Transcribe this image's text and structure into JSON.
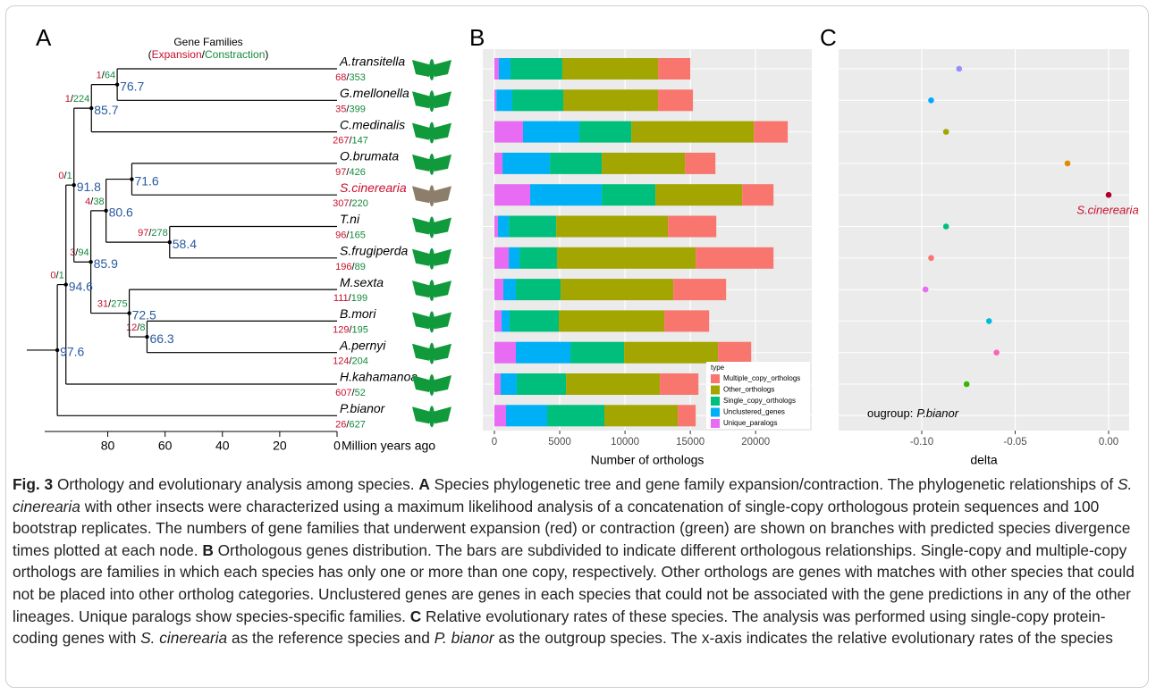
{
  "panel_labels": [
    "A",
    "B",
    "C"
  ],
  "tree": {
    "header": {
      "title": "Gene Families",
      "open": "(",
      "expansion": "Expansion",
      "slash": "/",
      "contraction": "Constraction",
      "close": ")"
    },
    "axis": {
      "lim": [
        102,
        0
      ],
      "ticks": [
        80,
        60,
        40,
        20,
        0
      ],
      "label": "Million years ago"
    },
    "root": {
      "age": 97.6,
      "children": [
        {
          "age": 94.6,
          "expansion": 0,
          "contraction": 1,
          "children": [
            {
              "age": 91.8,
              "expansion": 0,
              "contraction": 1,
              "children": [
                {
                  "age": 85.7,
                  "expansion": 1,
                  "contraction": 224,
                  "children": [
                    {
                      "age": 76.7,
                      "expansion": 1,
                      "contraction": 64,
                      "children": [
                        {
                          "name": "A.transitella",
                          "expansion": 68,
                          "contraction": 353
                        },
                        {
                          "name": "G.mellonella",
                          "expansion": 35,
                          "contraction": 399
                        }
                      ]
                    },
                    {
                      "name": "C.medinalis",
                      "expansion": 267,
                      "contraction": 147
                    }
                  ]
                },
                {
                  "age": 85.9,
                  "expansion": 3,
                  "contraction": 94,
                  "children": [
                    {
                      "age": 80.6,
                      "expansion": 4,
                      "contraction": 38,
                      "children": [
                        {
                          "age": 71.6,
                          "children": [
                            {
                              "name": "O.brumata",
                              "expansion": 97,
                              "contraction": 426
                            },
                            {
                              "name": "S.cinerearia",
                              "expansion": 307,
                              "contraction": 220,
                              "color": "#c8102e"
                            }
                          ]
                        },
                        {
                          "age": 58.4,
                          "expansion": 97,
                          "contraction": 278,
                          "children": [
                            {
                              "name": "T.ni",
                              "expansion": 96,
                              "contraction": 165
                            },
                            {
                              "name": "S.frugiperda",
                              "expansion": 196,
                              "contraction": 89
                            }
                          ]
                        }
                      ]
                    },
                    {
                      "age": 72.5,
                      "expansion": 31,
                      "contraction": 275,
                      "children": [
                        {
                          "name": "M.sexta",
                          "expansion": 111,
                          "contraction": 199
                        },
                        {
                          "age": 66.3,
                          "expansion": 12,
                          "contraction": 8,
                          "children": [
                            {
                              "name": "B.mori",
                              "expansion": 129,
                              "contraction": 195
                            },
                            {
                              "name": "A.pernyi",
                              "expansion": 124,
                              "contraction": 204
                            }
                          ]
                        }
                      ]
                    }
                  ]
                }
              ]
            },
            {
              "name": "H.kahamanoa",
              "expansion": 607,
              "contraction": 52
            }
          ]
        },
        {
          "name": "P.bianor",
          "expansion": 26,
          "contraction": 627
        }
      ]
    }
  },
  "chart_data": [
    {
      "type": "bar",
      "orientation": "horizontal",
      "stacked": true,
      "xlabel": "Number of orthologs",
      "xlim": [
        -890,
        24300
      ],
      "xticks": [
        0,
        5000,
        10000,
        15000,
        20000
      ],
      "grid": true,
      "legend_title": "type",
      "legend": "bottom-right",
      "series": [
        {
          "name": "Multiple_copy_orthologs",
          "color": "#f8766d",
          "values": [
            2470,
            2670,
            2600,
            2330,
            2400,
            3700,
            5960,
            4040,
            3430,
            2540,
            2950,
            1370
          ]
        },
        {
          "name": "Other_orthologs",
          "color": "#a3a500",
          "values": [
            7330,
            7260,
            9380,
            6370,
            6640,
            8560,
            10620,
            8630,
            8080,
            7190,
            7190,
            5620
          ]
        },
        {
          "name": "Single_copy_orthologs",
          "color": "#00bf7d",
          "values": [
            3970,
            3900,
            3980,
            3970,
            4110,
            3630,
            2870,
            3430,
            3770,
            4110,
            3770,
            4380
          ]
        },
        {
          "name": "Unclustered_genes",
          "color": "#00b0f6",
          "values": [
            890,
            1220,
            4310,
            3630,
            5480,
            830,
            820,
            960,
            610,
            4180,
            1230,
            3150
          ]
        },
        {
          "name": "Unique_paralogs",
          "color": "#e76bf3",
          "values": [
            340,
            150,
            2190,
            620,
            2740,
            270,
            1100,
            680,
            550,
            1640,
            480,
            890
          ]
        }
      ]
    },
    {
      "type": "scatter",
      "xlabel": "delta",
      "xlim": [
        -0.1445,
        0.011
      ],
      "xticks": [
        {
          "value": -0.1,
          "label": "-0.10"
        },
        -0.05,
        {
          "value": 0,
          "label": "0.00"
        }
      ],
      "grid": true,
      "values": [
        -0.08,
        -0.095,
        -0.087,
        -0.022,
        0,
        -0.087,
        -0.095,
        -0.098,
        -0.064,
        -0.06,
        -0.076
      ],
      "colors": [
        "#9590ff",
        "#00a9ff",
        "#a3a500",
        "#e08b00",
        "#b2002a",
        "#00bf7d",
        "#f8766d",
        "#e76bf3",
        "#00bcd8",
        "#ff62bc",
        "#39b600"
      ],
      "annotations": [
        {
          "text": "S.cinerearia",
          "color": "#c8102e"
        },
        {
          "parts": [
            "ougroup:",
            "P.bianor"
          ]
        }
      ]
    }
  ],
  "caption": {
    "parts": [
      "Fig. 3",
      " Orthology and evolutionary analysis among species. ",
      "A",
      " Species phylogenetic tree and gene family expansion/contraction. The phylogenetic relationships of ",
      "S. cinerearia",
      " with other insects were characterized using a maximum likelihood analysis of a concatenation of single-copy orthologous protein sequences and 100 bootstrap replicates. The numbers of gene families that underwent expansion (red) or contraction (green) are shown on branches with predicted species divergence times plotted at each node. ",
      "B",
      " Orthologous genes distribution. The bars are subdivided to indicate different orthologous relationships. Single-copy and multiple-copy orthologs are families in which each species has only one or more than one copy, respectively. Other orthologs are genes with matches with other species that could not be placed into other ortholog categories. Unclustered genes are genes in each species that could not be associated with the gene predictions in any of the other lineages. Unique paralogs show species-specific families. ",
      "C",
      " Relative evolutionary rates of these species. The analysis was performed using single-copy protein-coding genes with ",
      "S. cinerearia",
      " as the reference species and ",
      "P. bianor",
      " as the outgroup species. The x-axis indicates the relative evolutionary rates of the species"
    ]
  }
}
